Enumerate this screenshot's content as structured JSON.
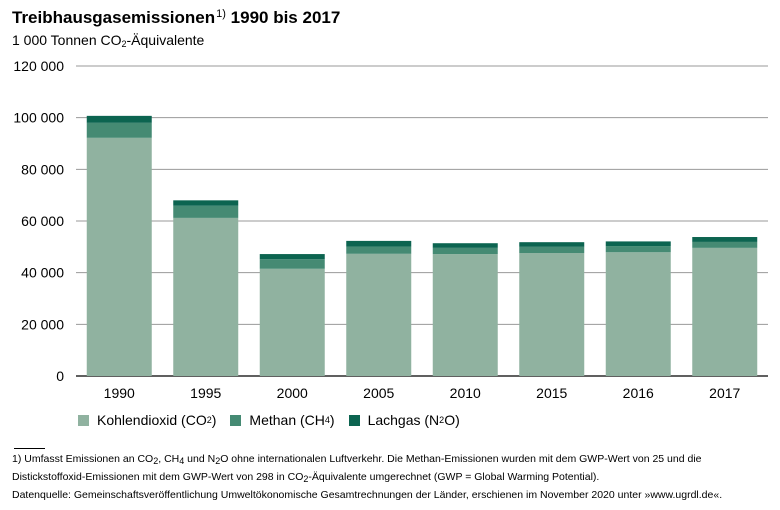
{
  "title": {
    "text": "Treibhausgasemissionen",
    "footnote_mark": "1)",
    "years": "1990 bis 2017"
  },
  "subtitle": {
    "pre": "1 000 Tonnen CO",
    "sub": "2",
    "post": "-Äquivalente"
  },
  "chart_data": {
    "type": "bar",
    "stacked": true,
    "categories": [
      "1990",
      "1995",
      "2000",
      "2005",
      "2010",
      "2015",
      "2016",
      "2017"
    ],
    "series": [
      {
        "name": "Kohlendioxid (CO2)",
        "color": "#90b2a0",
        "values": [
          92200,
          61200,
          41500,
          47300,
          47200,
          47600,
          47900,
          49600
        ]
      },
      {
        "name": "Methan (CH4)",
        "color": "#458a73",
        "values": [
          5800,
          4700,
          3700,
          2800,
          2400,
          2400,
          2400,
          2300
        ]
      },
      {
        "name": "Lachgas (N2O)",
        "color": "#0c6450",
        "values": [
          2700,
          2100,
          2000,
          2200,
          1800,
          1800,
          1800,
          1900
        ]
      }
    ],
    "ylim": [
      0,
      120000
    ],
    "yticks": [
      0,
      20000,
      40000,
      60000,
      80000,
      100000,
      120000
    ],
    "ytick_labels": [
      "0",
      "20 000",
      "40 000",
      "60 000",
      "80 000",
      "100 000",
      "120 000"
    ],
    "grid": true,
    "legend_position": "bottom-left"
  },
  "legend": [
    {
      "pre": "Kohlendioxid (CO",
      "sub": "2",
      "post": ")",
      "color": "#90b2a0"
    },
    {
      "pre": "Methan (CH",
      "sub": "4",
      "post": ")",
      "color": "#458a73"
    },
    {
      "pre": "Lachgas (N",
      "sub": "2",
      "post": "O)",
      "color": "#0c6450"
    }
  ],
  "footnotes": {
    "line1": {
      "a": "1) Umfasst Emissionen an CO",
      "b": "2",
      "c": ", CH",
      "d": "4",
      "e": " und N",
      "f": "2",
      "g": "O ohne internationalen Luftverkehr. Die Methan-Emissionen wurden mit dem GWP-Wert von 25 und die"
    },
    "line2": {
      "a": "Distickstoffoxid-Emissionen mit dem GWP-Wert von 298 in CO",
      "b": "2",
      "c": "-Äquivalente umgerechnet (GWP = Global Warming Potential)."
    },
    "line3": "Datenquelle: Gemeinschaftsveröffentlichung Umweltökonomische Gesamtrechnungen der Länder, erschienen im November 2020 unter »www.ugrdl.de«."
  }
}
